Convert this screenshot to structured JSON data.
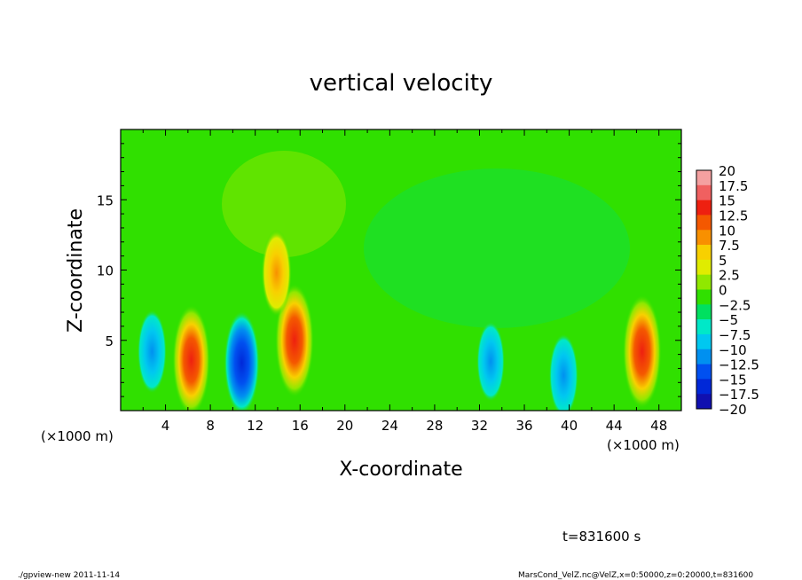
{
  "chart_data": {
    "type": "heatmap",
    "title": "vertical velocity",
    "xlabel": "X-coordinate",
    "ylabel": "Z-coordinate",
    "x_unit_left": "(×1000 m)",
    "x_unit_right": "(×1000 m)",
    "xlim": [
      0,
      50
    ],
    "ylim": [
      0,
      20
    ],
    "x_ticks": [
      4,
      8,
      12,
      16,
      20,
      24,
      28,
      32,
      36,
      40,
      44,
      48
    ],
    "y_ticks": [
      5,
      10,
      15
    ],
    "colorbar": {
      "levels": [
        20,
        17.5,
        15,
        12.5,
        10,
        7.5,
        5,
        2.5,
        0,
        -2.5,
        -5,
        -7.5,
        -10,
        -12.5,
        -15,
        -17.5,
        -20
      ],
      "labels": [
        "20",
        "17.5",
        "15",
        "12.5",
        "10",
        "7.5",
        "5",
        "2.5",
        "0",
        "−2.5",
        "−5",
        "−7.5",
        "−10",
        "−12.5",
        "−15",
        "−17.5",
        "−20"
      ],
      "colors": [
        "#f4a0a0",
        "#f06060",
        "#ee2010",
        "#f45800",
        "#f89000",
        "#f8d000",
        "#e0ec00",
        "#90e800",
        "#30e000",
        "#00e060",
        "#00e8c8",
        "#00c8f0",
        "#0090f0",
        "#0050f0",
        "#0028d8",
        "#1010b0",
        "#6010b0"
      ]
    },
    "features": [
      {
        "x": 2.8,
        "z": 4.2,
        "value": -9
      },
      {
        "x": 6.3,
        "z": 3.6,
        "value": 17
      },
      {
        "x": 10.8,
        "z": 3.4,
        "value": -15
      },
      {
        "x": 15.5,
        "z": 5.0,
        "value": 18
      },
      {
        "x": 13.9,
        "z": 9.8,
        "value": 10
      },
      {
        "x": 33.0,
        "z": 3.5,
        "value": -8
      },
      {
        "x": 39.5,
        "z": 2.5,
        "value": -9
      },
      {
        "x": 46.5,
        "z": 4.2,
        "value": 18
      }
    ]
  },
  "time_label": "t=831600 s",
  "footer_left": "./gpview-new  2011-11-14",
  "footer_right": "MarsCond_VelZ.nc@VelZ,x=0:50000,z=0:20000,t=831600"
}
